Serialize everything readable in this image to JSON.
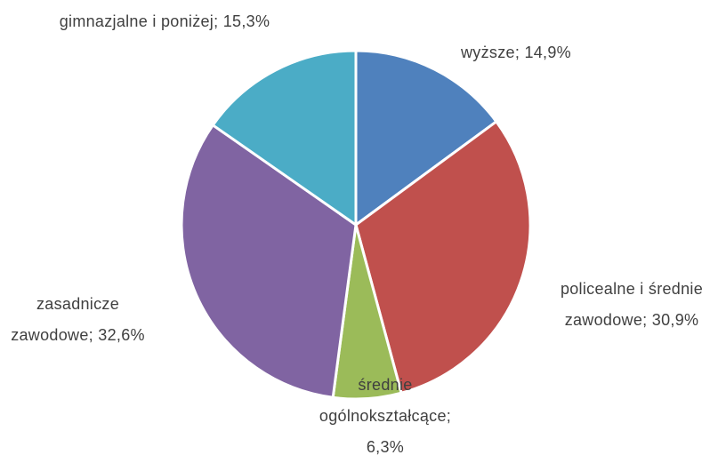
{
  "chart_data": {
    "type": "pie",
    "categories": [
      "wyższe",
      "policealne i średnie zawodowe",
      "średnie ogólnokształcące",
      "zasadnicze zawodowe",
      "gimnazjalne i poniżej"
    ],
    "values": [
      14.9,
      30.9,
      6.3,
      32.6,
      15.3
    ],
    "value_labels": [
      "14,9%",
      "30,9%",
      "6,3%",
      "32,6%",
      "15,3%"
    ],
    "label_separator": ";",
    "colors": [
      "#4f81bd",
      "#c0504d",
      "#9bbb59",
      "#8064a2",
      "#4bacc6"
    ]
  }
}
